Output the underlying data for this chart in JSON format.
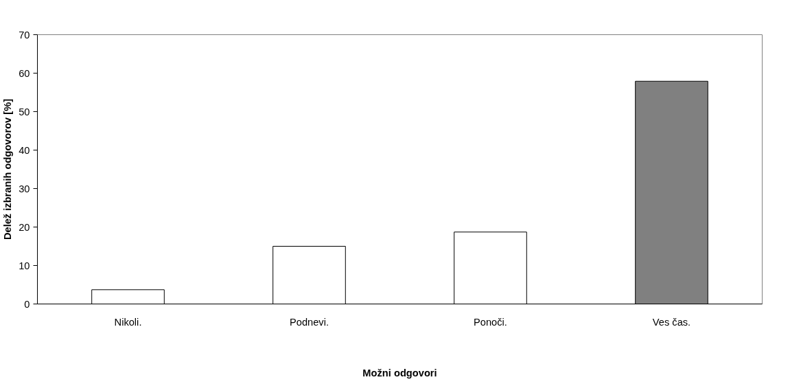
{
  "chart_data": {
    "type": "bar",
    "categories": [
      "Nikoli.",
      "Podnevi.",
      "Ponoči.",
      "Ves čas."
    ],
    "values": [
      3.7,
      15.0,
      18.7,
      57.9
    ],
    "colors": [
      "#ffffff",
      "#ffffff",
      "#ffffff",
      "#808080"
    ],
    "xlabel": "Možni odgovori",
    "ylabel": "Delež izbranih odgovorov [%]",
    "ylim": [
      0,
      70
    ],
    "yticks": [
      0,
      10,
      20,
      30,
      40,
      50,
      60,
      70
    ],
    "grid": false
  }
}
